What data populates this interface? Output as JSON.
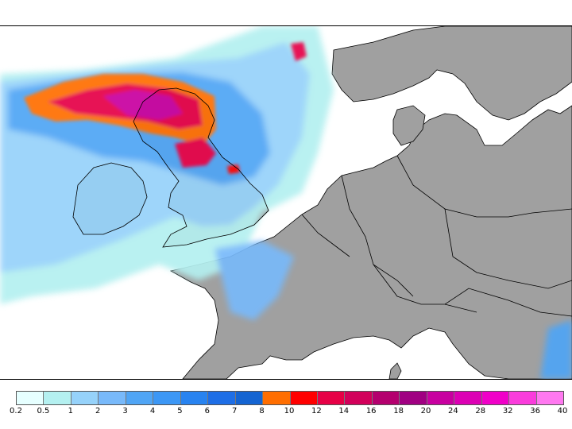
{
  "legend": {
    "colors": [
      "#e6ffff",
      "#b4f0f0",
      "#96d2fa",
      "#78b9fa",
      "#50a5f5",
      "#3c97f5",
      "#2883f0",
      "#1e6ee6",
      "#1464d2",
      "#ff6e00",
      "#ff0000",
      "#e60046",
      "#d2005a",
      "#b4006e",
      "#a00082",
      "#c800a0",
      "#dc00b4",
      "#f000c8",
      "#fa3cdc",
      "#ff78f0"
    ],
    "labels": [
      "0.2",
      "0.5",
      "1",
      "2",
      "3",
      "4",
      "5",
      "6",
      "7",
      "8",
      "10",
      "12",
      "14",
      "16",
      "18",
      "20",
      "24",
      "28",
      "32",
      "36",
      "40"
    ]
  },
  "map": {
    "land_color": "#a0a0a0",
    "sea_color": "#ffffff",
    "border_color": "#000000"
  }
}
